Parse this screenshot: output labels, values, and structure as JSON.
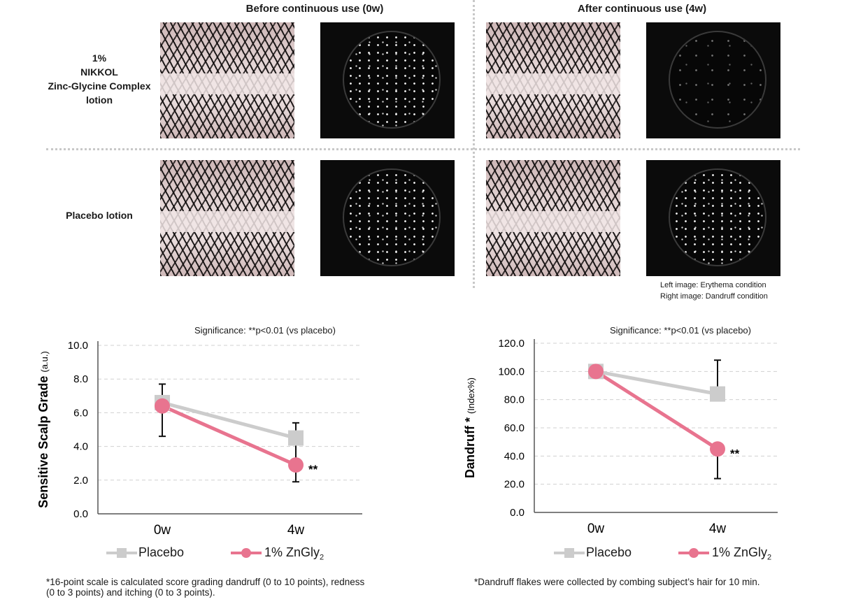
{
  "header": {
    "before": "Before continuous use (0w)",
    "after": "After continuous use (4w)"
  },
  "rows": {
    "zn": [
      "1%",
      "NIKKOL",
      "Zinc-Glycine Complex",
      "lotion"
    ],
    "placebo": "Placebo lotion"
  },
  "image_note": [
    "Left image: Erythema condition",
    "Right image: Dandruff condition"
  ],
  "chart_data": [
    {
      "type": "line",
      "title": "",
      "significance": "Significance: **p<0.01 (vs placebo)",
      "ylabel_main": "Sensitive Scalp Grade",
      "ylabel_unit": "(a.u.)",
      "xlabel": "",
      "categories": [
        "0w",
        "4w"
      ],
      "ylim": [
        0,
        10
      ],
      "yticks": [
        "0.0",
        "2.0",
        "4.0",
        "6.0",
        "8.0",
        "10.0"
      ],
      "grid": true,
      "series": [
        {
          "name": "Placebo",
          "values": [
            6.6,
            4.5
          ],
          "color": "#cccccc",
          "marker": "square"
        },
        {
          "name": "1% ZnGly",
          "values": [
            6.4,
            2.9
          ],
          "err_low": [
            4.6,
            1.9
          ],
          "err_high": [
            7.7,
            5.4
          ],
          "color": "#e8748f",
          "marker": "circle"
        }
      ],
      "annotation": "**",
      "legend": {
        "placebo": "Placebo",
        "zn": "1% ZnGly",
        "zn_sub": "2"
      },
      "footnote": [
        "*16-point scale is calculated score grading dandruff (0 to 10 points), redness",
        "(0 to 3 points) and itching (0 to 3 points)."
      ]
    },
    {
      "type": "line",
      "title": "",
      "significance": "Significance: **p<0.01 (vs placebo)",
      "ylabel_main": "Dandruff *",
      "ylabel_unit": "(Index%)",
      "xlabel": "",
      "categories": [
        "0w",
        "4w"
      ],
      "ylim": [
        0,
        120
      ],
      "yticks": [
        "0.0",
        "20.0",
        "40.0",
        "60.0",
        "80.0",
        "100.0",
        "120.0"
      ],
      "grid": true,
      "series": [
        {
          "name": "Placebo",
          "values": [
            100,
            84
          ],
          "err_high": [
            100,
            108
          ],
          "color": "#cccccc",
          "marker": "square"
        },
        {
          "name": "1% ZnGly",
          "values": [
            100,
            45
          ],
          "err_low": [
            100,
            24
          ],
          "color": "#e8748f",
          "marker": "circle"
        }
      ],
      "annotation": "**",
      "legend": {
        "placebo": "Placebo",
        "zn": "1% ZnGly",
        "zn_sub": "2"
      },
      "footnote": [
        "*Dandruff flakes were collected by combing subject’s hair for 10 min."
      ]
    }
  ],
  "colors": {
    "placebo": "#cccccc",
    "zn": "#e8748f",
    "grid": "#d0d0d0"
  }
}
